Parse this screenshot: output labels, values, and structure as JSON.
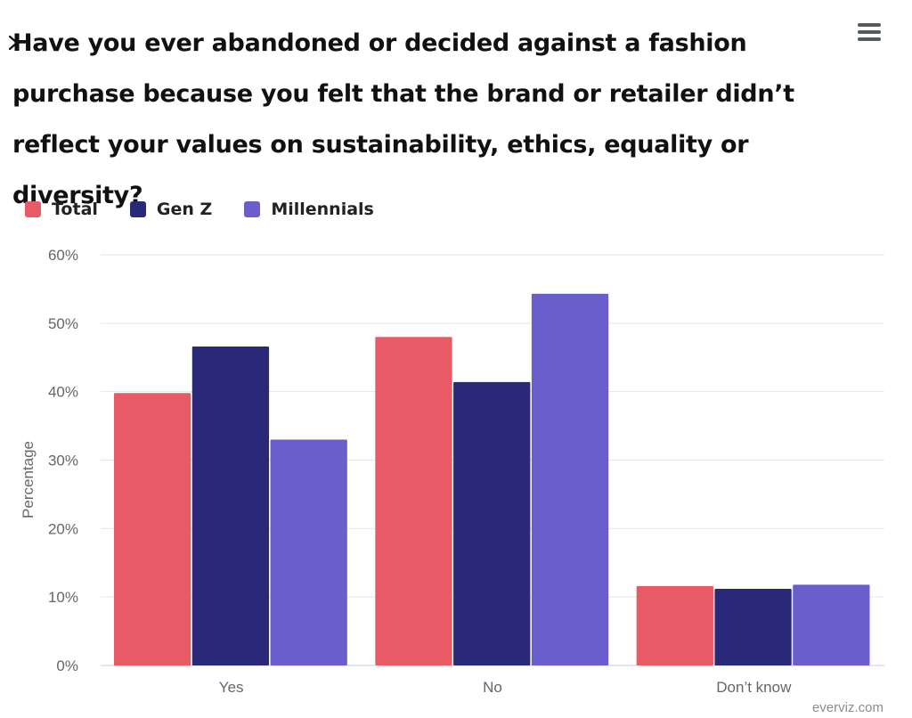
{
  "header": {
    "title": "Have you ever abandoned or decided against a fashion purchase because you felt that the brand or retailer didn’t reflect your values on sustainability, ethics, equality or diversity?",
    "back_icon": "chevron-right-icon",
    "menu_icon": "hamburger-menu-icon"
  },
  "credit": "everviz.com",
  "colors": {
    "total": "#e85a66",
    "gen_z": "#2a2878",
    "millennials": "#6a5ecc",
    "grid": "#e6e6e6",
    "axis_text": "#666666"
  },
  "chart_data": {
    "type": "bar",
    "title": "Have you ever abandoned or decided against a fashion purchase because you felt that the brand or retailer didn’t reflect your values on sustainability, ethics, equality or diversity?",
    "categories": [
      "Yes",
      "No",
      "Don’t know"
    ],
    "series": [
      {
        "name": "Total",
        "color": "#e85a66",
        "values": [
          39.8,
          48.0,
          11.6
        ]
      },
      {
        "name": "Gen Z",
        "color": "#2a2878",
        "values": [
          46.6,
          41.4,
          11.2
        ]
      },
      {
        "name": "Millennials",
        "color": "#6a5ecc",
        "values": [
          33.0,
          54.3,
          11.8
        ]
      }
    ],
    "ylabel": "Percentage",
    "xlabel": "",
    "ylim": [
      0,
      60
    ],
    "yticks": [
      0,
      10,
      20,
      30,
      40,
      50,
      60
    ],
    "ytick_labels": [
      "0%",
      "10%",
      "20%",
      "30%",
      "40%",
      "50%",
      "60%"
    ],
    "grid": true,
    "legend_position": "top-left"
  }
}
